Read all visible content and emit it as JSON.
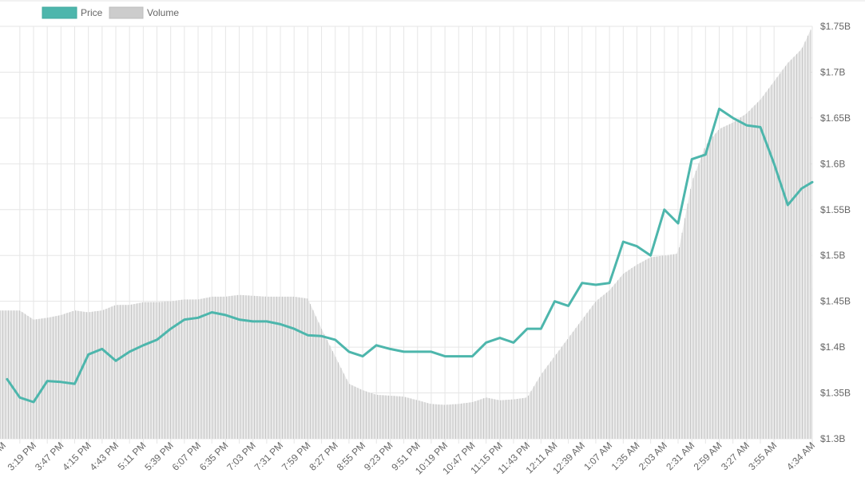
{
  "chart_data": {
    "type": "line",
    "title": "",
    "xlabel": "",
    "ylabel": "",
    "legend_position": "top-left",
    "grid": true,
    "legend": [
      {
        "label": "Price",
        "color": "#4db6ac"
      },
      {
        "label": "Volume",
        "color": "#cccccc"
      }
    ],
    "x_ticks": [
      "3:19 PM",
      "3:47 PM",
      "4:15 PM",
      "4:43 PM",
      "5:11 PM",
      "5:39 PM",
      "6:07 PM",
      "6:35 PM",
      "7:03 PM",
      "7:31 PM",
      "7:59 PM",
      "8:27 PM",
      "8:55 PM",
      "9:23 PM",
      "9:51 PM",
      "10:19 PM",
      "10:47 PM",
      "11:15 PM",
      "11:43 PM",
      "12:11 AM",
      "12:39 AM",
      "1:07 AM",
      "1:35 AM",
      "2:03 AM",
      "2:31 AM",
      "2:59 AM",
      "3:27 AM",
      "3:55 AM",
      "4:34 AM"
    ],
    "x_first_partial_tick": "0 PM",
    "y_ticks": [
      "$1.3B",
      "$1.35B",
      "$1.4B",
      "$1.45B",
      "$1.5B",
      "$1.55B",
      "$1.6B",
      "$1.65B",
      "$1.7B",
      "$1.75B"
    ],
    "y_axis": {
      "position": "right",
      "min": 1.3,
      "max": 1.75,
      "unit": "$B"
    },
    "series": [
      {
        "name": "Price",
        "type": "line",
        "color": "#4db6ac",
        "x": [
          "2:52 PM",
          "3:05 PM",
          "3:19 PM",
          "3:33 PM",
          "3:47 PM",
          "4:01 PM",
          "4:15 PM",
          "4:29 PM",
          "4:43 PM",
          "4:57 PM",
          "5:11 PM",
          "5:25 PM",
          "5:39 PM",
          "5:53 PM",
          "6:07 PM",
          "6:21 PM",
          "6:35 PM",
          "6:49 PM",
          "7:03 PM",
          "7:17 PM",
          "7:31 PM",
          "7:45 PM",
          "7:59 PM",
          "8:13 PM",
          "8:27 PM",
          "8:41 PM",
          "8:55 PM",
          "9:09 PM",
          "9:23 PM",
          "9:37 PM",
          "9:51 PM",
          "10:05 PM",
          "10:19 PM",
          "10:33 PM",
          "10:47 PM",
          "11:01 PM",
          "11:15 PM",
          "11:29 PM",
          "11:43 PM",
          "11:57 PM",
          "12:11 AM",
          "12:25 AM",
          "12:39 AM",
          "12:53 AM",
          "1:07 AM",
          "1:21 AM",
          "1:35 AM",
          "1:49 AM",
          "2:03 AM",
          "2:17 AM",
          "2:31 AM",
          "2:45 AM",
          "2:59 AM",
          "3:13 AM",
          "3:27 AM",
          "3:41 AM",
          "3:55 AM",
          "4:09 AM",
          "4:23 AM",
          "4:34 AM"
        ],
        "values": [
          1.365,
          1.345,
          1.34,
          1.363,
          1.362,
          1.36,
          1.392,
          1.398,
          1.385,
          1.395,
          1.402,
          1.408,
          1.42,
          1.43,
          1.432,
          1.438,
          1.435,
          1.43,
          1.428,
          1.428,
          1.425,
          1.42,
          1.413,
          1.412,
          1.408,
          1.395,
          1.39,
          1.402,
          1.398,
          1.395,
          1.395,
          1.395,
          1.39,
          1.39,
          1.39,
          1.405,
          1.41,
          1.405,
          1.42,
          1.42,
          1.45,
          1.445,
          1.47,
          1.468,
          1.47,
          1.515,
          1.51,
          1.5,
          1.55,
          1.535,
          1.605,
          1.61,
          1.66,
          1.65,
          1.642,
          1.64,
          1.6,
          1.555,
          1.573,
          1.58
        ]
      },
      {
        "name": "Volume",
        "type": "area",
        "color": "#cccccc",
        "x": [
          "2:52 PM",
          "3:05 PM",
          "3:19 PM",
          "3:33 PM",
          "3:47 PM",
          "4:01 PM",
          "4:15 PM",
          "4:29 PM",
          "4:43 PM",
          "4:57 PM",
          "5:11 PM",
          "5:25 PM",
          "5:39 PM",
          "5:53 PM",
          "6:07 PM",
          "6:21 PM",
          "6:35 PM",
          "6:49 PM",
          "7:03 PM",
          "7:17 PM",
          "7:31 PM",
          "7:45 PM",
          "7:59 PM",
          "8:13 PM",
          "8:27 PM",
          "8:41 PM",
          "8:55 PM",
          "9:09 PM",
          "9:23 PM",
          "9:37 PM",
          "9:51 PM",
          "10:05 PM",
          "10:19 PM",
          "10:33 PM",
          "10:47 PM",
          "11:01 PM",
          "11:15 PM",
          "11:29 PM",
          "11:43 PM",
          "11:57 PM",
          "12:11 AM",
          "12:25 AM",
          "12:39 AM",
          "12:53 AM",
          "1:07 AM",
          "1:21 AM",
          "1:35 AM",
          "1:49 AM",
          "2:03 AM",
          "2:17 AM",
          "2:31 AM",
          "2:45 AM",
          "2:59 AM",
          "3:13 AM",
          "3:27 AM",
          "3:41 AM",
          "3:55 AM",
          "4:09 AM",
          "4:23 AM",
          "4:34 AM"
        ],
        "values": [
          1.44,
          1.44,
          1.43,
          1.432,
          1.435,
          1.44,
          1.438,
          1.44,
          1.446,
          1.446,
          1.449,
          1.449,
          1.45,
          1.452,
          1.452,
          1.455,
          1.455,
          1.457,
          1.456,
          1.455,
          1.455,
          1.455,
          1.453,
          1.42,
          1.39,
          1.36,
          1.353,
          1.348,
          1.347,
          1.346,
          1.342,
          1.338,
          1.337,
          1.338,
          1.34,
          1.345,
          1.342,
          1.343,
          1.345,
          1.37,
          1.39,
          1.41,
          1.43,
          1.45,
          1.462,
          1.48,
          1.49,
          1.498,
          1.5,
          1.502,
          1.58,
          1.62,
          1.638,
          1.645,
          1.655,
          1.67,
          1.69,
          1.71,
          1.725,
          1.75
        ]
      }
    ]
  }
}
